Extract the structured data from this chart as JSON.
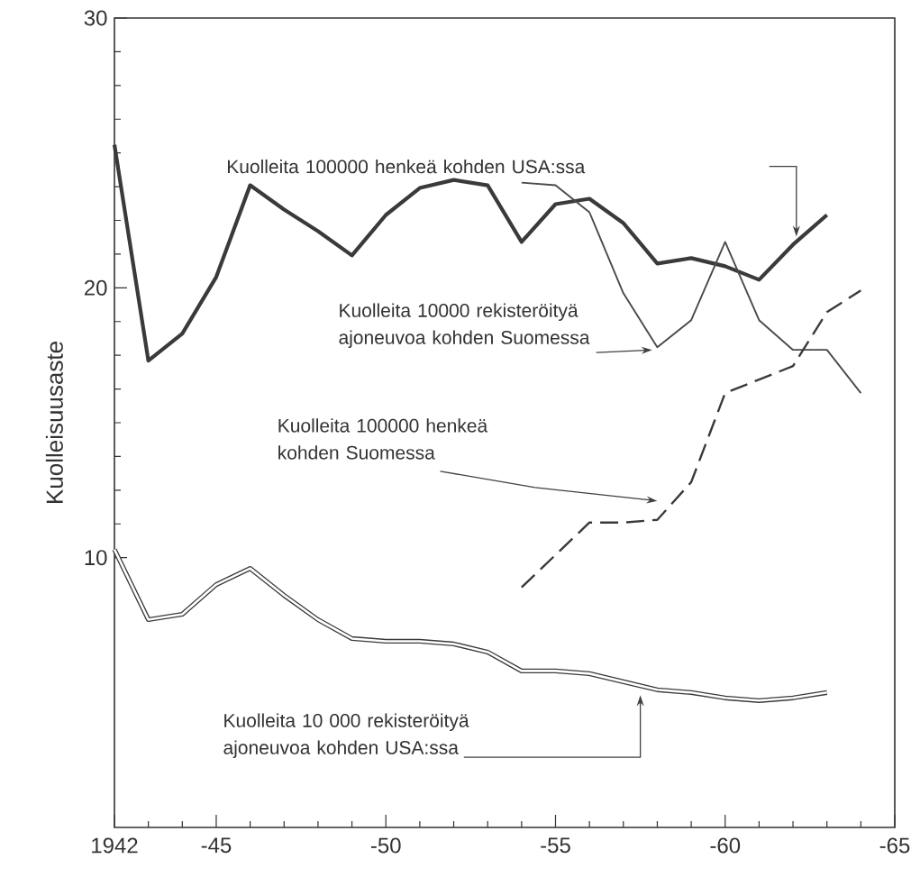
{
  "chart_data": {
    "type": "line",
    "ylabel": "Kuolleisuusaste",
    "categories": [
      "1942",
      null,
      null,
      "-45",
      null,
      null,
      null,
      null,
      "-50",
      null,
      null,
      null,
      null,
      "-55",
      null,
      null,
      null,
      null,
      "-60",
      null,
      null,
      null,
      null,
      "-65"
    ],
    "ylim": [
      0,
      30
    ],
    "yticks": [
      10,
      20,
      30
    ],
    "grid": false,
    "legend": false,
    "marker": "none",
    "series": [
      {
        "name": "Kuolleita 100000 henkeä kohden USA:ssa",
        "color": "#3a3a3a",
        "line_style": "solid",
        "values": [
          25.3,
          17.3,
          18.3,
          20.4,
          23.8,
          22.9,
          22.1,
          21.2,
          22.7,
          23.7,
          24.0,
          23.8,
          21.7,
          23.1,
          23.3,
          22.4,
          20.9,
          21.1,
          20.8,
          20.3,
          21.6,
          22.7,
          null,
          null
        ]
      },
      {
        "name": "Kuolleita 10000 rekisteröityä ajoneuvoa kohden Suomessa",
        "color": "#4a4a4a",
        "line_style": "solid",
        "values": [
          null,
          null,
          null,
          null,
          null,
          null,
          null,
          null,
          null,
          null,
          null,
          null,
          23.9,
          23.8,
          22.8,
          19.8,
          17.8,
          18.8,
          21.7,
          18.8,
          17.7,
          17.7,
          16.1,
          null
        ]
      },
      {
        "name": "Kuolleita 100000 henkeä kohden Suomessa",
        "color": "#3a3a3a",
        "line_style": "dashed",
        "values": [
          null,
          null,
          null,
          null,
          null,
          null,
          null,
          null,
          null,
          null,
          null,
          null,
          8.9,
          10.1,
          11.3,
          11.3,
          11.4,
          12.8,
          16.1,
          16.6,
          17.1,
          19.1,
          19.9,
          null
        ]
      },
      {
        "name": "Kuolleita 10 000 rekisteröityä ajoneuvoa kohden USA:ssa",
        "color": "#3a3a3a",
        "line_style": "solid",
        "values": [
          10.3,
          7.7,
          7.9,
          9.0,
          9.6,
          8.6,
          7.7,
          7.0,
          6.9,
          6.9,
          6.8,
          6.5,
          5.8,
          5.8,
          5.7,
          5.4,
          5.1,
          5.0,
          4.8,
          4.7,
          4.8,
          5.0,
          null,
          null
        ]
      }
    ]
  }
}
